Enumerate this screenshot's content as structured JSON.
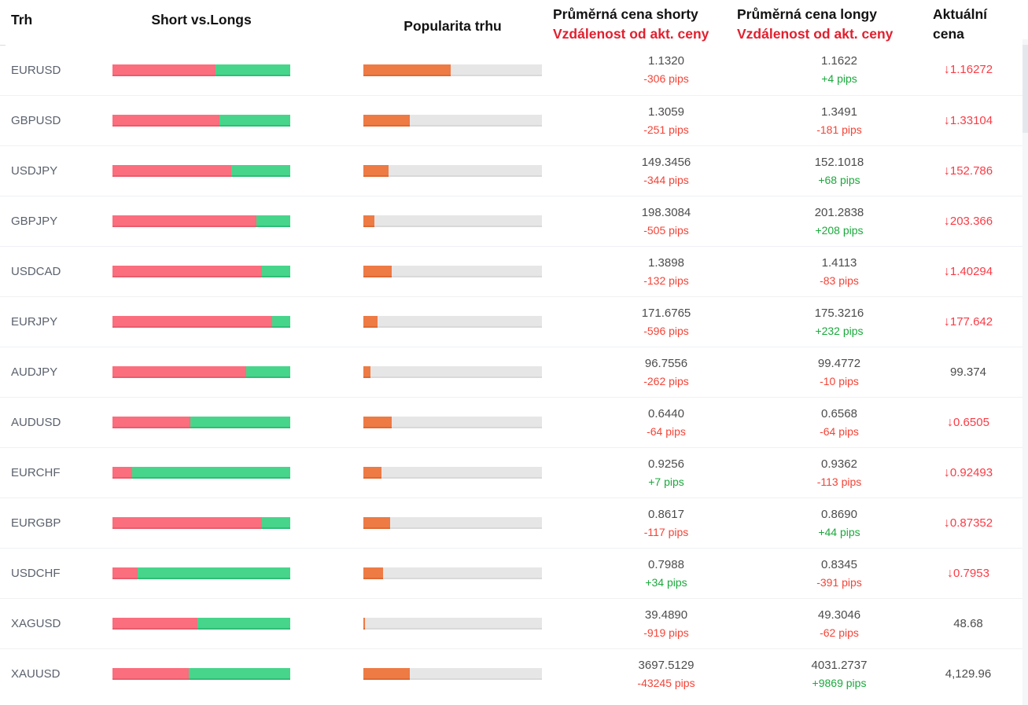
{
  "header": {
    "market": "Trh",
    "short_vs_longs": "Short vs.Longs",
    "popularity": "Popularita trhu",
    "avg_short_title": "Průměrná cena shorty",
    "avg_short_subtitle": "Vzdálenost od akt. ceny",
    "avg_long_title": "Průměrná cena longy",
    "avg_long_subtitle": "Vzdálenost od akt. ceny",
    "current_line1": "Aktuální",
    "current_line2": "cena"
  },
  "icons": {
    "arrow_down": "↓"
  },
  "colors": {
    "short_bar": "#fb6e7e",
    "short_bar_shade": "#e85d6e",
    "long_bar": "#47d58b",
    "long_bar_shade": "#30bd77",
    "popularity_bar": "#ee7a44",
    "popularity_bar_shade": "#dd6a35",
    "track": "#e6e6e6",
    "track_shade": "#d9d9d9",
    "header_red": "#e1202f",
    "pips_negative": "#f44336",
    "pips_positive": "#1aa93c",
    "price_down": "#fb3b45",
    "price_neutral": "#4c4c4c",
    "market_label": "#5b626d"
  },
  "rows": [
    {
      "market": "EURUSD",
      "short_pct": 58,
      "long_pct": 42,
      "popularity_pct": 49,
      "short_price": "1.1320",
      "short_dist": "-306 pips",
      "short_dist_dir": "neg",
      "long_price": "1.1622",
      "long_dist": "+4 pips",
      "long_dist_dir": "pos",
      "current_price": "1.16272",
      "current_dir": "down"
    },
    {
      "market": "GBPUSD",
      "short_pct": 60,
      "long_pct": 40,
      "popularity_pct": 26,
      "short_price": "1.3059",
      "short_dist": "-251 pips",
      "short_dist_dir": "neg",
      "long_price": "1.3491",
      "long_dist": "-181 pips",
      "long_dist_dir": "neg",
      "current_price": "1.33104",
      "current_dir": "down"
    },
    {
      "market": "USDJPY",
      "short_pct": 67,
      "long_pct": 33,
      "popularity_pct": 14,
      "short_price": "149.3456",
      "short_dist": "-344 pips",
      "short_dist_dir": "neg",
      "long_price": "152.1018",
      "long_dist": "+68 pips",
      "long_dist_dir": "pos",
      "current_price": "152.786",
      "current_dir": "down"
    },
    {
      "market": "GBPJPY",
      "short_pct": 81,
      "long_pct": 19,
      "popularity_pct": 6,
      "short_price": "198.3084",
      "short_dist": "-505 pips",
      "short_dist_dir": "neg",
      "long_price": "201.2838",
      "long_dist": "+208 pips",
      "long_dist_dir": "pos",
      "current_price": "203.366",
      "current_dir": "down"
    },
    {
      "market": "USDCAD",
      "short_pct": 84,
      "long_pct": 16,
      "popularity_pct": 16,
      "short_price": "1.3898",
      "short_dist": "-132 pips",
      "short_dist_dir": "neg",
      "long_price": "1.4113",
      "long_dist": "-83 pips",
      "long_dist_dir": "neg",
      "current_price": "1.40294",
      "current_dir": "down"
    },
    {
      "market": "EURJPY",
      "short_pct": 90,
      "long_pct": 10,
      "popularity_pct": 8,
      "short_price": "171.6765",
      "short_dist": "-596 pips",
      "short_dist_dir": "neg",
      "long_price": "175.3216",
      "long_dist": "+232 pips",
      "long_dist_dir": "pos",
      "current_price": "177.642",
      "current_dir": "down"
    },
    {
      "market": "AUDJPY",
      "short_pct": 75,
      "long_pct": 25,
      "popularity_pct": 4,
      "short_price": "96.7556",
      "short_dist": "-262 pips",
      "short_dist_dir": "neg",
      "long_price": "99.4772",
      "long_dist": "-10 pips",
      "long_dist_dir": "neg",
      "current_price": "99.374",
      "current_dir": "none"
    },
    {
      "market": "AUDUSD",
      "short_pct": 44,
      "long_pct": 56,
      "popularity_pct": 16,
      "short_price": "0.6440",
      "short_dist": "-64 pips",
      "short_dist_dir": "neg",
      "long_price": "0.6568",
      "long_dist": "-64 pips",
      "long_dist_dir": "neg",
      "current_price": "0.6505",
      "current_dir": "down"
    },
    {
      "market": "EURCHF",
      "short_pct": 11,
      "long_pct": 89,
      "popularity_pct": 10,
      "short_price": "0.9256",
      "short_dist": "+7 pips",
      "short_dist_dir": "pos",
      "long_price": "0.9362",
      "long_dist": "-113 pips",
      "long_dist_dir": "neg",
      "current_price": "0.92493",
      "current_dir": "down"
    },
    {
      "market": "EURGBP",
      "short_pct": 84,
      "long_pct": 16,
      "popularity_pct": 15,
      "short_price": "0.8617",
      "short_dist": "-117 pips",
      "short_dist_dir": "neg",
      "long_price": "0.8690",
      "long_dist": "+44 pips",
      "long_dist_dir": "pos",
      "current_price": "0.87352",
      "current_dir": "down"
    },
    {
      "market": "USDCHF",
      "short_pct": 14,
      "long_pct": 86,
      "popularity_pct": 11,
      "short_price": "0.7988",
      "short_dist": "+34 pips",
      "short_dist_dir": "pos",
      "long_price": "0.8345",
      "long_dist": "-391 pips",
      "long_dist_dir": "neg",
      "current_price": "0.7953",
      "current_dir": "down"
    },
    {
      "market": "XAGUSD",
      "short_pct": 48,
      "long_pct": 52,
      "popularity_pct": 1,
      "short_price": "39.4890",
      "short_dist": "-919 pips",
      "short_dist_dir": "neg",
      "long_price": "49.3046",
      "long_dist": "-62 pips",
      "long_dist_dir": "neg",
      "current_price": "48.68",
      "current_dir": "none"
    },
    {
      "market": "XAUUSD",
      "short_pct": 43,
      "long_pct": 57,
      "popularity_pct": 26,
      "short_price": "3697.5129",
      "short_dist": "-43245 pips",
      "short_dist_dir": "neg",
      "long_price": "4031.2737",
      "long_dist": "+9869 pips",
      "long_dist_dir": "pos",
      "current_price": "4,129.96",
      "current_dir": "none"
    }
  ]
}
